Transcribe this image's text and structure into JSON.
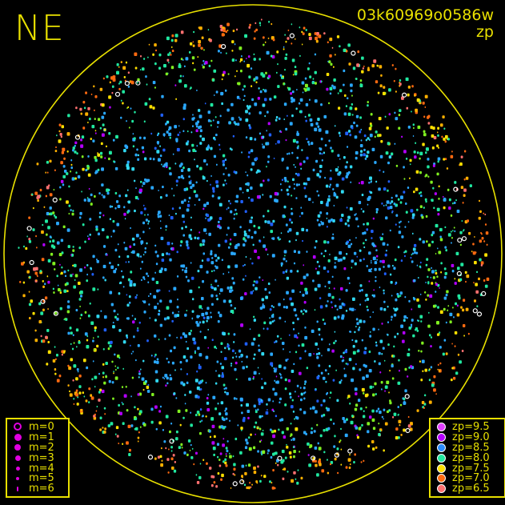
{
  "header": {
    "direction_label": "NE",
    "image_id": "03k60969o0586w",
    "mode": "zp"
  },
  "colors": {
    "frame": "#e8e000",
    "background": "#000000"
  },
  "magnitude_legend": [
    {
      "label": "m=0",
      "hollow": true
    },
    {
      "label": "m=1"
    },
    {
      "label": "m=2"
    },
    {
      "label": "m=3"
    },
    {
      "label": "m=4"
    },
    {
      "label": "m=5"
    },
    {
      "label": "m=6"
    }
  ],
  "zp_legend": [
    {
      "label": "zp=9.5",
      "color": "#e040ff"
    },
    {
      "label": "zp=9.0",
      "color": "#b400ff"
    },
    {
      "label": "zp=8.5",
      "color": "#2a8cff"
    },
    {
      "label": "zp=8.0",
      "color": "#20e8a0"
    },
    {
      "label": "zp=7.5",
      "color": "#ffe000"
    },
    {
      "label": "zp=7.0",
      "color": "#ff6a10"
    },
    {
      "label": "zp=6.5",
      "color": "#ff7070"
    }
  ],
  "chart_data": {
    "type": "scatter",
    "projection": "all-sky circle",
    "color_encodes": "zp",
    "size_encodes": "m",
    "grid": false
  }
}
